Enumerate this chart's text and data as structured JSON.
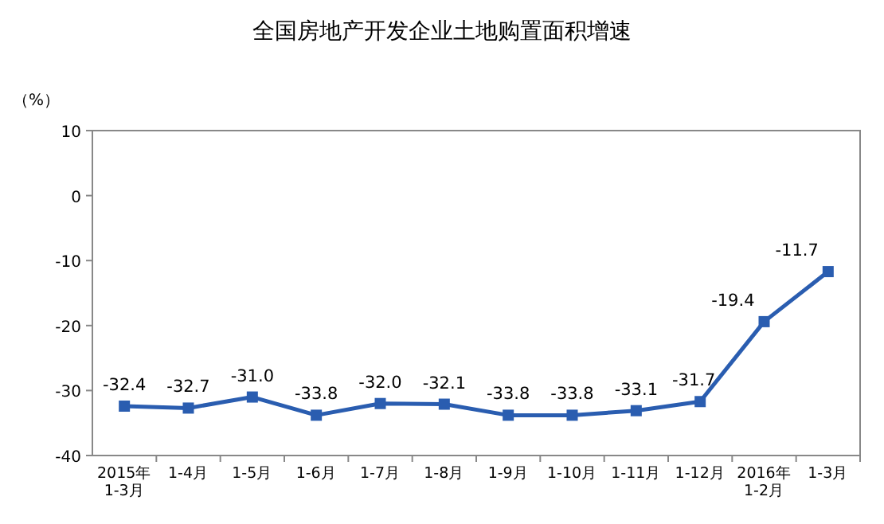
{
  "chart_data": {
    "type": "line",
    "title": "全国房地产开发企业土地购置面积增速",
    "ylabel": "（%）",
    "categories": [
      "2015年\n1-3月",
      "1-4月",
      "1-5月",
      "1-6月",
      "1-7月",
      "1-8月",
      "1-9月",
      "1-10月",
      "1-11月",
      "1-12月",
      "2016年\n1-2月",
      "1-3月"
    ],
    "series": [
      {
        "color": "#2a5db0",
        "values": [
          -32.4,
          -32.7,
          -31.0,
          -33.8,
          -32.0,
          -32.1,
          -33.8,
          -33.8,
          -33.1,
          -31.7,
          -19.4,
          -11.7
        ],
        "value_labels": [
          "-32.4",
          "-32.7",
          "-31.0",
          "-33.8",
          "-32.0",
          "-32.1",
          "-33.8",
          "-33.8",
          "-33.1",
          "-31.7",
          "-19.4",
          "-11.7"
        ]
      }
    ],
    "ylim": [
      -40,
      10
    ],
    "yticks": [
      -40,
      -30,
      -20,
      -10,
      0,
      10
    ],
    "marker": "square",
    "line_style": "solid",
    "grid": false
  }
}
